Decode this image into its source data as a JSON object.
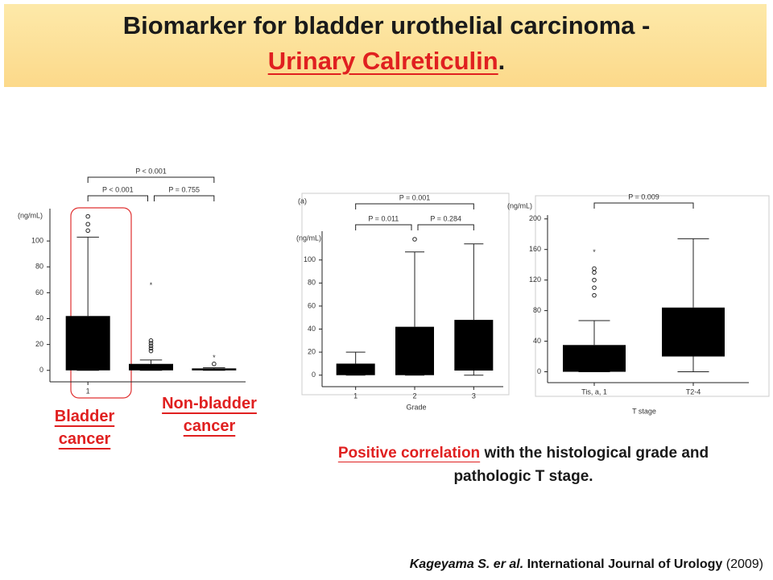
{
  "title": {
    "line1": "Biomarker for bladder urothelial carcinoma -",
    "highlight": "Urinary Calreticulin",
    "end": "."
  },
  "chart_data": [
    {
      "type": "box",
      "ylabel": "(ng/mL)",
      "categories": [
        "1",
        null,
        null
      ],
      "color": "#000000",
      "ylim": [
        -7,
        125
      ],
      "yticks": [
        0,
        20,
        40,
        60,
        80,
        100
      ],
      "boxes": [
        {
          "min": 0,
          "q1": 0,
          "q3": 42,
          "max": 103,
          "outliers": [
            108,
            113,
            119
          ],
          "extremes": []
        },
        {
          "min": 0,
          "q1": 0,
          "q3": 5,
          "max": 8,
          "outliers": [
            15,
            17,
            19,
            21,
            23
          ],
          "extremes": [
            66
          ]
        },
        {
          "min": 0,
          "q1": 0,
          "q3": 1.5,
          "max": 2,
          "outliers": [
            5
          ],
          "extremes": [
            10
          ]
        }
      ],
      "annotations": [
        "P < 0.001",
        "P < 0.001",
        "P = 0.755"
      ]
    },
    {
      "type": "box",
      "panel": "(a)",
      "ylabel": "(ng/mL)",
      "xlabel": "Grade",
      "categories": [
        "1",
        "2",
        "3"
      ],
      "color": "#000000",
      "ylim": [
        -10,
        125
      ],
      "yticks": [
        0,
        20,
        40,
        60,
        80,
        100
      ],
      "boxes": [
        {
          "min": 0,
          "q1": 0,
          "q3": 10,
          "max": 20,
          "outliers": [],
          "extremes": []
        },
        {
          "min": 0,
          "q1": 0,
          "q3": 42,
          "max": 107,
          "outliers": [
            118
          ],
          "extremes": []
        },
        {
          "min": 0,
          "q1": 4,
          "q3": 48,
          "max": 114,
          "outliers": [],
          "extremes": []
        }
      ],
      "annotations": [
        "P = 0.001",
        "P = 0.011",
        "P = 0.284"
      ]
    },
    {
      "type": "box",
      "ylabel": "(ng/mL)",
      "xlabel": "T stage",
      "categories": [
        "Tis, a, 1",
        "T2-4"
      ],
      "color": "#000000",
      "ylim": [
        -10,
        205
      ],
      "yticks": [
        0,
        40,
        80,
        120,
        160,
        200
      ],
      "boxes": [
        {
          "min": 0,
          "q1": 0,
          "q3": 35,
          "max": 67,
          "outliers": [
            100,
            110,
            120,
            130,
            135
          ],
          "extremes": [
            157
          ]
        },
        {
          "min": 0,
          "q1": 20,
          "q3": 84,
          "max": 174,
          "outliers": [],
          "extremes": []
        }
      ],
      "annotations": [
        "P = 0.009"
      ]
    }
  ],
  "group_labels": [
    "Bladder cancer",
    "Non-bladder cancer"
  ],
  "caption": {
    "highlight": "Positive correlation",
    "rest": "with the histological grade and pathologic T stage."
  },
  "citation": {
    "authors": "Kageyama S. er al.",
    "journal": "International Journal of Urology",
    "year": "(2009)"
  }
}
